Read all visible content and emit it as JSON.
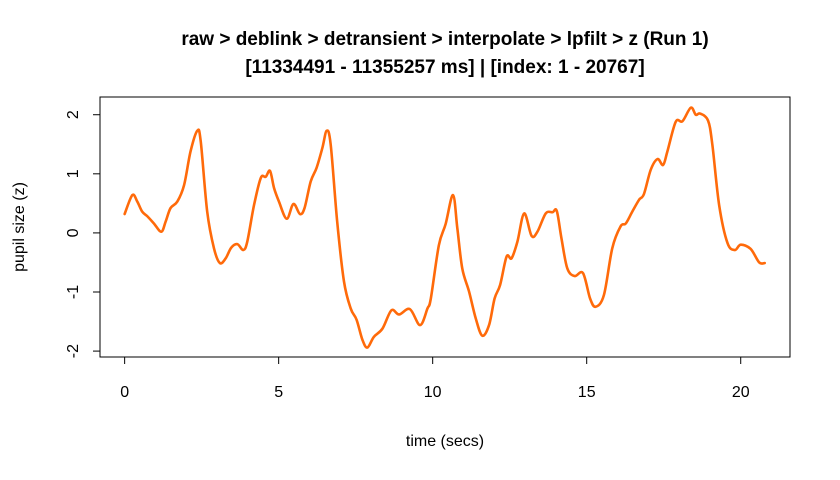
{
  "chart_data": {
    "type": "line",
    "title": "raw > deblink > detransient > interpolate > lpfilt > z (Run 1)",
    "subtitle": "[11334491 - 11355257 ms] | [index: 1 - 20767]",
    "xlabel": "time (secs)",
    "ylabel": "pupil size (z)",
    "xlim": [
      -0.8,
      21.6
    ],
    "ylim": [
      -2.1,
      2.3
    ],
    "xticks": [
      0,
      5,
      10,
      15,
      20
    ],
    "yticks": [
      -2,
      -1,
      0,
      1,
      2
    ],
    "grid": false,
    "color": "#ff6a0a",
    "x": [
      0,
      0.25,
      0.41,
      0.57,
      0.74,
      0.95,
      1.19,
      1.33,
      1.49,
      1.71,
      1.93,
      2.14,
      2.36,
      2.47,
      2.68,
      2.9,
      3.09,
      3.28,
      3.46,
      3.66,
      3.85,
      3.98,
      4.2,
      4.42,
      4.58,
      4.72,
      4.85,
      5.01,
      5.26,
      5.48,
      5.69,
      5.84,
      6.04,
      6.23,
      6.42,
      6.56,
      6.69,
      6.9,
      7.12,
      7.34,
      7.53,
      7.72,
      7.88,
      8.09,
      8.37,
      8.66,
      8.91,
      9.26,
      9.59,
      9.83,
      9.94,
      10.2,
      10.42,
      10.66,
      10.8,
      10.96,
      11.18,
      11.4,
      11.61,
      11.83,
      12.01,
      12.19,
      12.4,
      12.56,
      12.75,
      12.97,
      13.21,
      13.4,
      13.67,
      13.89,
      14.03,
      14.18,
      14.37,
      14.61,
      14.88,
      15.11,
      15.29,
      15.56,
      15.83,
      16.1,
      16.27,
      16.48,
      16.7,
      16.86,
      17.08,
      17.3,
      17.48,
      17.62,
      17.89,
      18.11,
      18.38,
      18.54,
      18.68,
      18.94,
      19.08,
      19.3,
      19.57,
      19.81,
      20.0,
      20.32,
      20.6,
      20.78
    ],
    "y": [
      0.32,
      0.64,
      0.53,
      0.36,
      0.28,
      0.16,
      0.02,
      0.19,
      0.42,
      0.53,
      0.81,
      1.38,
      1.73,
      1.55,
      0.36,
      -0.26,
      -0.51,
      -0.43,
      -0.25,
      -0.19,
      -0.29,
      -0.15,
      0.47,
      0.93,
      0.95,
      1.05,
      0.76,
      0.53,
      0.24,
      0.49,
      0.32,
      0.42,
      0.87,
      1.1,
      1.44,
      1.73,
      1.49,
      0.19,
      -0.82,
      -1.28,
      -1.47,
      -1.81,
      -1.94,
      -1.76,
      -1.62,
      -1.31,
      -1.38,
      -1.29,
      -1.56,
      -1.28,
      -1.11,
      -0.21,
      0.15,
      0.64,
      0.08,
      -0.6,
      -0.99,
      -1.45,
      -1.74,
      -1.56,
      -1.11,
      -0.88,
      -0.4,
      -0.43,
      -0.15,
      0.33,
      -0.05,
      0.02,
      0.33,
      0.35,
      0.37,
      -0.09,
      -0.6,
      -0.73,
      -0.68,
      -1.11,
      -1.25,
      -1.05,
      -0.26,
      0.11,
      0.16,
      0.36,
      0.56,
      0.66,
      1.07,
      1.25,
      1.15,
      1.38,
      1.88,
      1.89,
      2.12,
      2.0,
      2.02,
      1.9,
      1.49,
      0.47,
      -0.17,
      -0.29,
      -0.2,
      -0.27,
      -0.5,
      -0.51
    ]
  }
}
